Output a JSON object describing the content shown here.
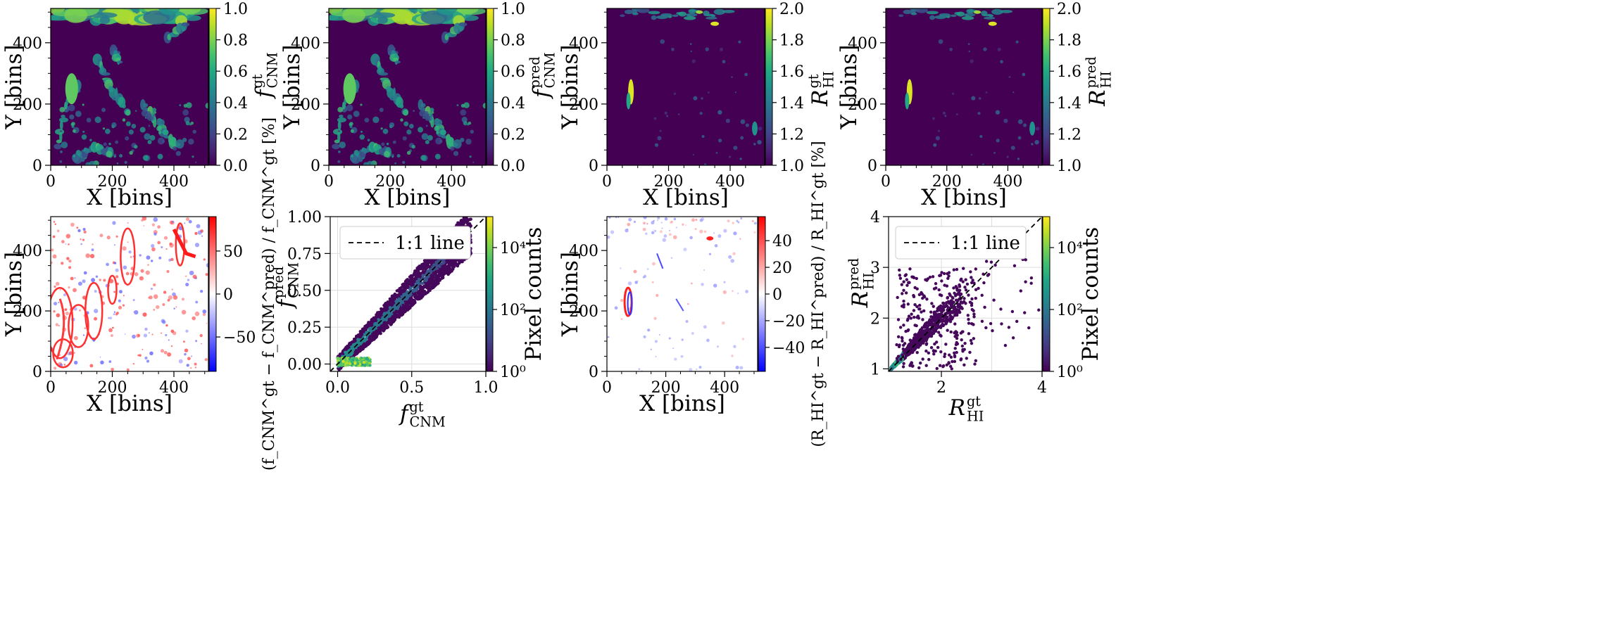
{
  "figure": {
    "row1": [
      {
        "id": "p1",
        "kind": "map",
        "cmap": "viridis",
        "xlabel": "X [bins]",
        "ylabel": "Y [bins]",
        "xticks": [
          "0",
          "200",
          "400"
        ],
        "yticks": [
          "0",
          "200",
          "400"
        ],
        "cb_ticks": [
          "0.0",
          "0.2",
          "0.4",
          "0.6",
          "0.8",
          "1.0"
        ],
        "cb_range": [
          0,
          1
        ],
        "cb_label_main": "f",
        "cb_label_sup": "gt",
        "cb_label_sub": "CNM"
      },
      {
        "id": "p2",
        "kind": "map",
        "cmap": "viridis",
        "xlabel": "X [bins]",
        "ylabel": "Y [bins]",
        "xticks": [
          "0",
          "200",
          "400"
        ],
        "yticks": [
          "0",
          "200",
          "400"
        ],
        "cb_ticks": [
          "0.0",
          "0.2",
          "0.4",
          "0.6",
          "0.8",
          "1.0"
        ],
        "cb_range": [
          0,
          1
        ],
        "cb_label_main": "f",
        "cb_label_sup": "pred",
        "cb_label_sub": "CNM"
      },
      {
        "id": "p3",
        "kind": "map",
        "cmap": "viridis",
        "xlabel": "X [bins]",
        "ylabel": "Y [bins]",
        "xticks": [
          "0",
          "200",
          "400"
        ],
        "yticks": [
          "0",
          "200",
          "400"
        ],
        "cb_ticks": [
          "1.0",
          "1.2",
          "1.4",
          "1.6",
          "1.8",
          "2.0"
        ],
        "cb_range": [
          1,
          2
        ],
        "cb_label_main": "R",
        "cb_label_sup": "gt",
        "cb_label_sub": "HI"
      },
      {
        "id": "p4",
        "kind": "map",
        "cmap": "viridis",
        "xlabel": "X [bins]",
        "ylabel": "Y [bins]",
        "xticks": [
          "0",
          "200",
          "400"
        ],
        "yticks": [
          "0",
          "200",
          "400"
        ],
        "cb_ticks": [
          "1.0",
          "1.2",
          "1.4",
          "1.6",
          "1.8",
          "2.0"
        ],
        "cb_range": [
          1,
          2
        ],
        "cb_label_main": "R",
        "cb_label_sup": "pred",
        "cb_label_sub": "HI"
      }
    ],
    "row2": [
      {
        "id": "p5",
        "kind": "residual",
        "cmap": "bwr",
        "xlabel": "X [bins]",
        "ylabel": "Y [bins]",
        "xticks": [
          "0",
          "200",
          "400"
        ],
        "yticks": [
          "0",
          "200",
          "400"
        ],
        "cb_ticks": [
          "−50",
          "0",
          "50"
        ],
        "cb_range": [
          -90,
          90
        ],
        "cb_label": "(f_CNM^gt − f_CNM^pred) / f_CNM^gt [%]"
      },
      {
        "id": "p6",
        "kind": "density",
        "cmap": "viridis",
        "xlabel": "f_CNM^gt",
        "ylabel": "f_CNM^pred",
        "xticks": [
          "0.0",
          "0.5",
          "1.0"
        ],
        "yticks": [
          "0.00",
          "0.25",
          "0.50",
          "0.75",
          "1.00"
        ],
        "legend": "1:1 line",
        "cb_ticks": [
          "10⁰",
          "10²",
          "10⁴"
        ],
        "cb_label": "Pixel counts"
      },
      {
        "id": "p7",
        "kind": "residual",
        "cmap": "bwr",
        "xlabel": "X [bins]",
        "ylabel": "Y [bins]",
        "xticks": [
          "0",
          "200",
          "400"
        ],
        "yticks": [
          "0",
          "200",
          "400"
        ],
        "cb_ticks": [
          "−40",
          "−20",
          "0",
          "20",
          "40"
        ],
        "cb_range": [
          -58,
          58
        ],
        "cb_label": "(R_HI^gt − R_HI^pred) / R_HI^gt [%]"
      },
      {
        "id": "p8",
        "kind": "density",
        "cmap": "viridis",
        "xlabel": "R_HI^gt",
        "ylabel": "R_HI^pred",
        "xticks": [
          "2",
          "4"
        ],
        "yticks": [
          "1",
          "2",
          "3",
          "4"
        ],
        "legend": "1:1 line",
        "cb_ticks": [
          "10⁰",
          "10²",
          "10⁴"
        ],
        "cb_label": "Pixel counts"
      }
    ]
  },
  "chart_data": [
    {
      "type": "heatmap",
      "title": "",
      "xlabel": "X [bins]",
      "ylabel": "Y [bins]",
      "xlim": [
        0,
        512
      ],
      "ylim": [
        0,
        512
      ],
      "colorbar": {
        "label": "f_CNM^gt",
        "range": [
          0.0,
          1.0
        ],
        "ticks": [
          0.0,
          0.2,
          0.4,
          0.6,
          0.8,
          1.0
        ]
      }
    },
    {
      "type": "heatmap",
      "title": "",
      "xlabel": "X [bins]",
      "ylabel": "Y [bins]",
      "xlim": [
        0,
        512
      ],
      "ylim": [
        0,
        512
      ],
      "colorbar": {
        "label": "f_CNM^pred",
        "range": [
          0.0,
          1.0
        ],
        "ticks": [
          0.0,
          0.2,
          0.4,
          0.6,
          0.8,
          1.0
        ]
      }
    },
    {
      "type": "heatmap",
      "title": "",
      "xlabel": "X [bins]",
      "ylabel": "Y [bins]",
      "xlim": [
        0,
        512
      ],
      "ylim": [
        0,
        512
      ],
      "colorbar": {
        "label": "R_HI^gt",
        "range": [
          1.0,
          2.0
        ],
        "ticks": [
          1.0,
          1.2,
          1.4,
          1.6,
          1.8,
          2.0
        ]
      }
    },
    {
      "type": "heatmap",
      "title": "",
      "xlabel": "X [bins]",
      "ylabel": "Y [bins]",
      "xlim": [
        0,
        512
      ],
      "ylim": [
        0,
        512
      ],
      "colorbar": {
        "label": "R_HI^pred",
        "range": [
          1.0,
          2.0
        ],
        "ticks": [
          1.0,
          1.2,
          1.4,
          1.6,
          1.8,
          2.0
        ]
      }
    },
    {
      "type": "heatmap",
      "title": "",
      "xlabel": "X [bins]",
      "ylabel": "Y [bins]",
      "xlim": [
        0,
        512
      ],
      "ylim": [
        0,
        512
      ],
      "colorbar": {
        "label": "(f_CNM^gt - f_CNM^pred)/f_CNM^gt [%]",
        "range": [
          -90,
          90
        ],
        "ticks": [
          -50,
          0,
          50
        ]
      }
    },
    {
      "type": "scatter",
      "title": "",
      "xlabel": "f_CNM^gt",
      "ylabel": "f_CNM^pred",
      "xlim": [
        -0.05,
        1.0
      ],
      "ylim": [
        -0.05,
        1.0
      ],
      "legend": "1:1 line",
      "colorbar": {
        "label": "Pixel counts",
        "scale": "log",
        "range": [
          1,
          100000
        ],
        "ticks": [
          "10^0",
          "10^2",
          "10^4"
        ]
      }
    },
    {
      "type": "heatmap",
      "title": "",
      "xlabel": "X [bins]",
      "ylabel": "Y [bins]",
      "xlim": [
        0,
        512
      ],
      "ylim": [
        0,
        512
      ],
      "colorbar": {
        "label": "(R_HI^gt - R_HI^pred)/R_HI^gt [%]",
        "range": [
          -58,
          58
        ],
        "ticks": [
          -40,
          -20,
          0,
          20,
          40
        ]
      }
    },
    {
      "type": "scatter",
      "title": "",
      "xlabel": "R_HI^gt",
      "ylabel": "R_HI^pred",
      "xlim": [
        0.95,
        4.0
      ],
      "ylim": [
        0.95,
        4.0
      ],
      "legend": "1:1 line",
      "colorbar": {
        "label": "Pixel counts",
        "scale": "log",
        "range": [
          1,
          100000
        ],
        "ticks": [
          "10^0",
          "10^2",
          "10^4"
        ]
      }
    }
  ]
}
